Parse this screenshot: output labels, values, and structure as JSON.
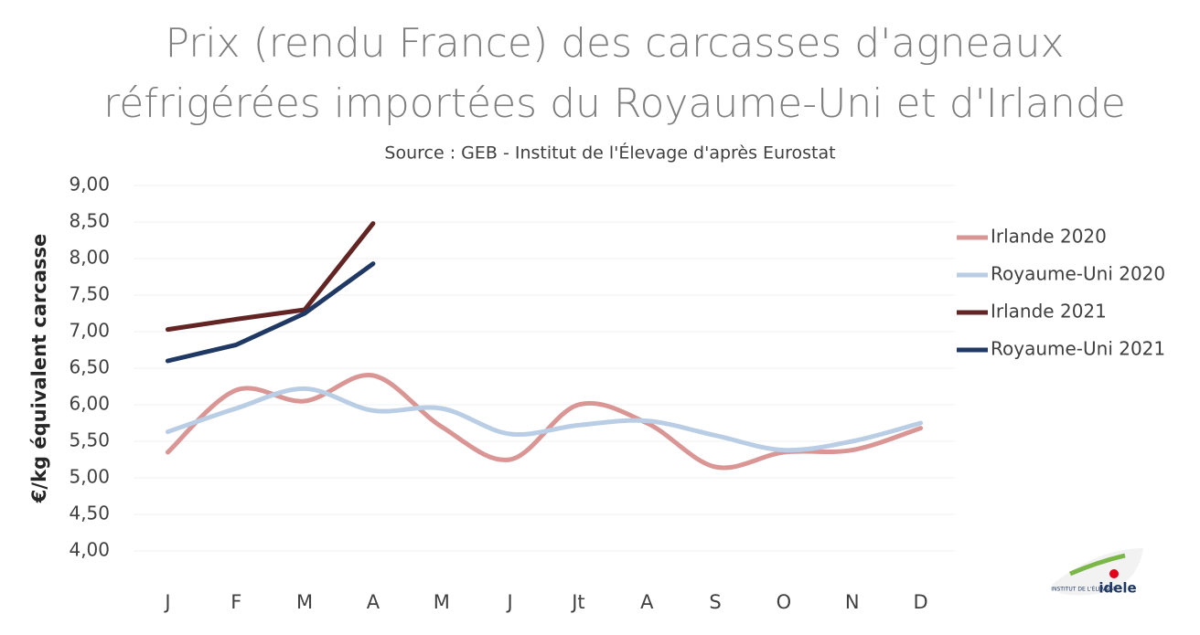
{
  "chart_data": {
    "type": "line",
    "title": [
      "Prix (rendu France) des carcasses d'agneaux",
      "réfrigérées importées du Royaume-Uni et d'Irlande"
    ],
    "subtitle": "Source : GEB - Institut de l'Élevage d'après Eurostat",
    "y_label": "€/kg équivalent carcasse",
    "categories": [
      "J",
      "F",
      "M",
      "A",
      "M",
      "J",
      "Jt",
      "A",
      "S",
      "O",
      "N",
      "D"
    ],
    "series": [
      {
        "name": "Irlande 2020",
        "color": "#d99694",
        "smooth": true,
        "values": [
          5.35,
          6.2,
          6.05,
          6.4,
          5.7,
          5.25,
          6.0,
          5.75,
          5.15,
          5.35,
          5.38,
          5.68
        ]
      },
      {
        "name": "Royaume-Uni 2020",
        "color": "#b9cde5",
        "smooth": true,
        "values": [
          5.63,
          5.95,
          6.22,
          5.92,
          5.95,
          5.6,
          5.72,
          5.78,
          5.58,
          5.38,
          5.5,
          5.75
        ]
      },
      {
        "name": "Irlande 2021",
        "color": "#632523",
        "smooth": false,
        "values": [
          7.03,
          7.17,
          7.3,
          8.48,
          null,
          null,
          null,
          null,
          null,
          null,
          null,
          null
        ]
      },
      {
        "name": "Royaume-Uni 2021",
        "color": "#1f3864",
        "smooth": false,
        "values": [
          6.6,
          6.82,
          7.25,
          7.93,
          null,
          null,
          null,
          null,
          null,
          null,
          null,
          null
        ]
      }
    ],
    "ylim": [
      4,
      9
    ],
    "yticks": [
      {
        "value": 4,
        "label": "4,00"
      },
      {
        "value": 4.5,
        "label": "4,50"
      },
      {
        "value": 5,
        "label": "5,00"
      },
      {
        "value": 5.5,
        "label": "5,50"
      },
      {
        "value": 6,
        "label": "6,00"
      },
      {
        "value": 6.5,
        "label": "6,50"
      },
      {
        "value": 7,
        "label": "7,00"
      },
      {
        "value": 7.5,
        "label": "7,50"
      },
      {
        "value": 8,
        "label": "8,00"
      },
      {
        "value": 8.5,
        "label": "8,50"
      },
      {
        "value": 9,
        "label": "9,00"
      }
    ],
    "grid": true,
    "legend": "right"
  },
  "logo": {
    "small": "INSTITUT DE L'ÉLEVAGE",
    "name": "idele"
  }
}
